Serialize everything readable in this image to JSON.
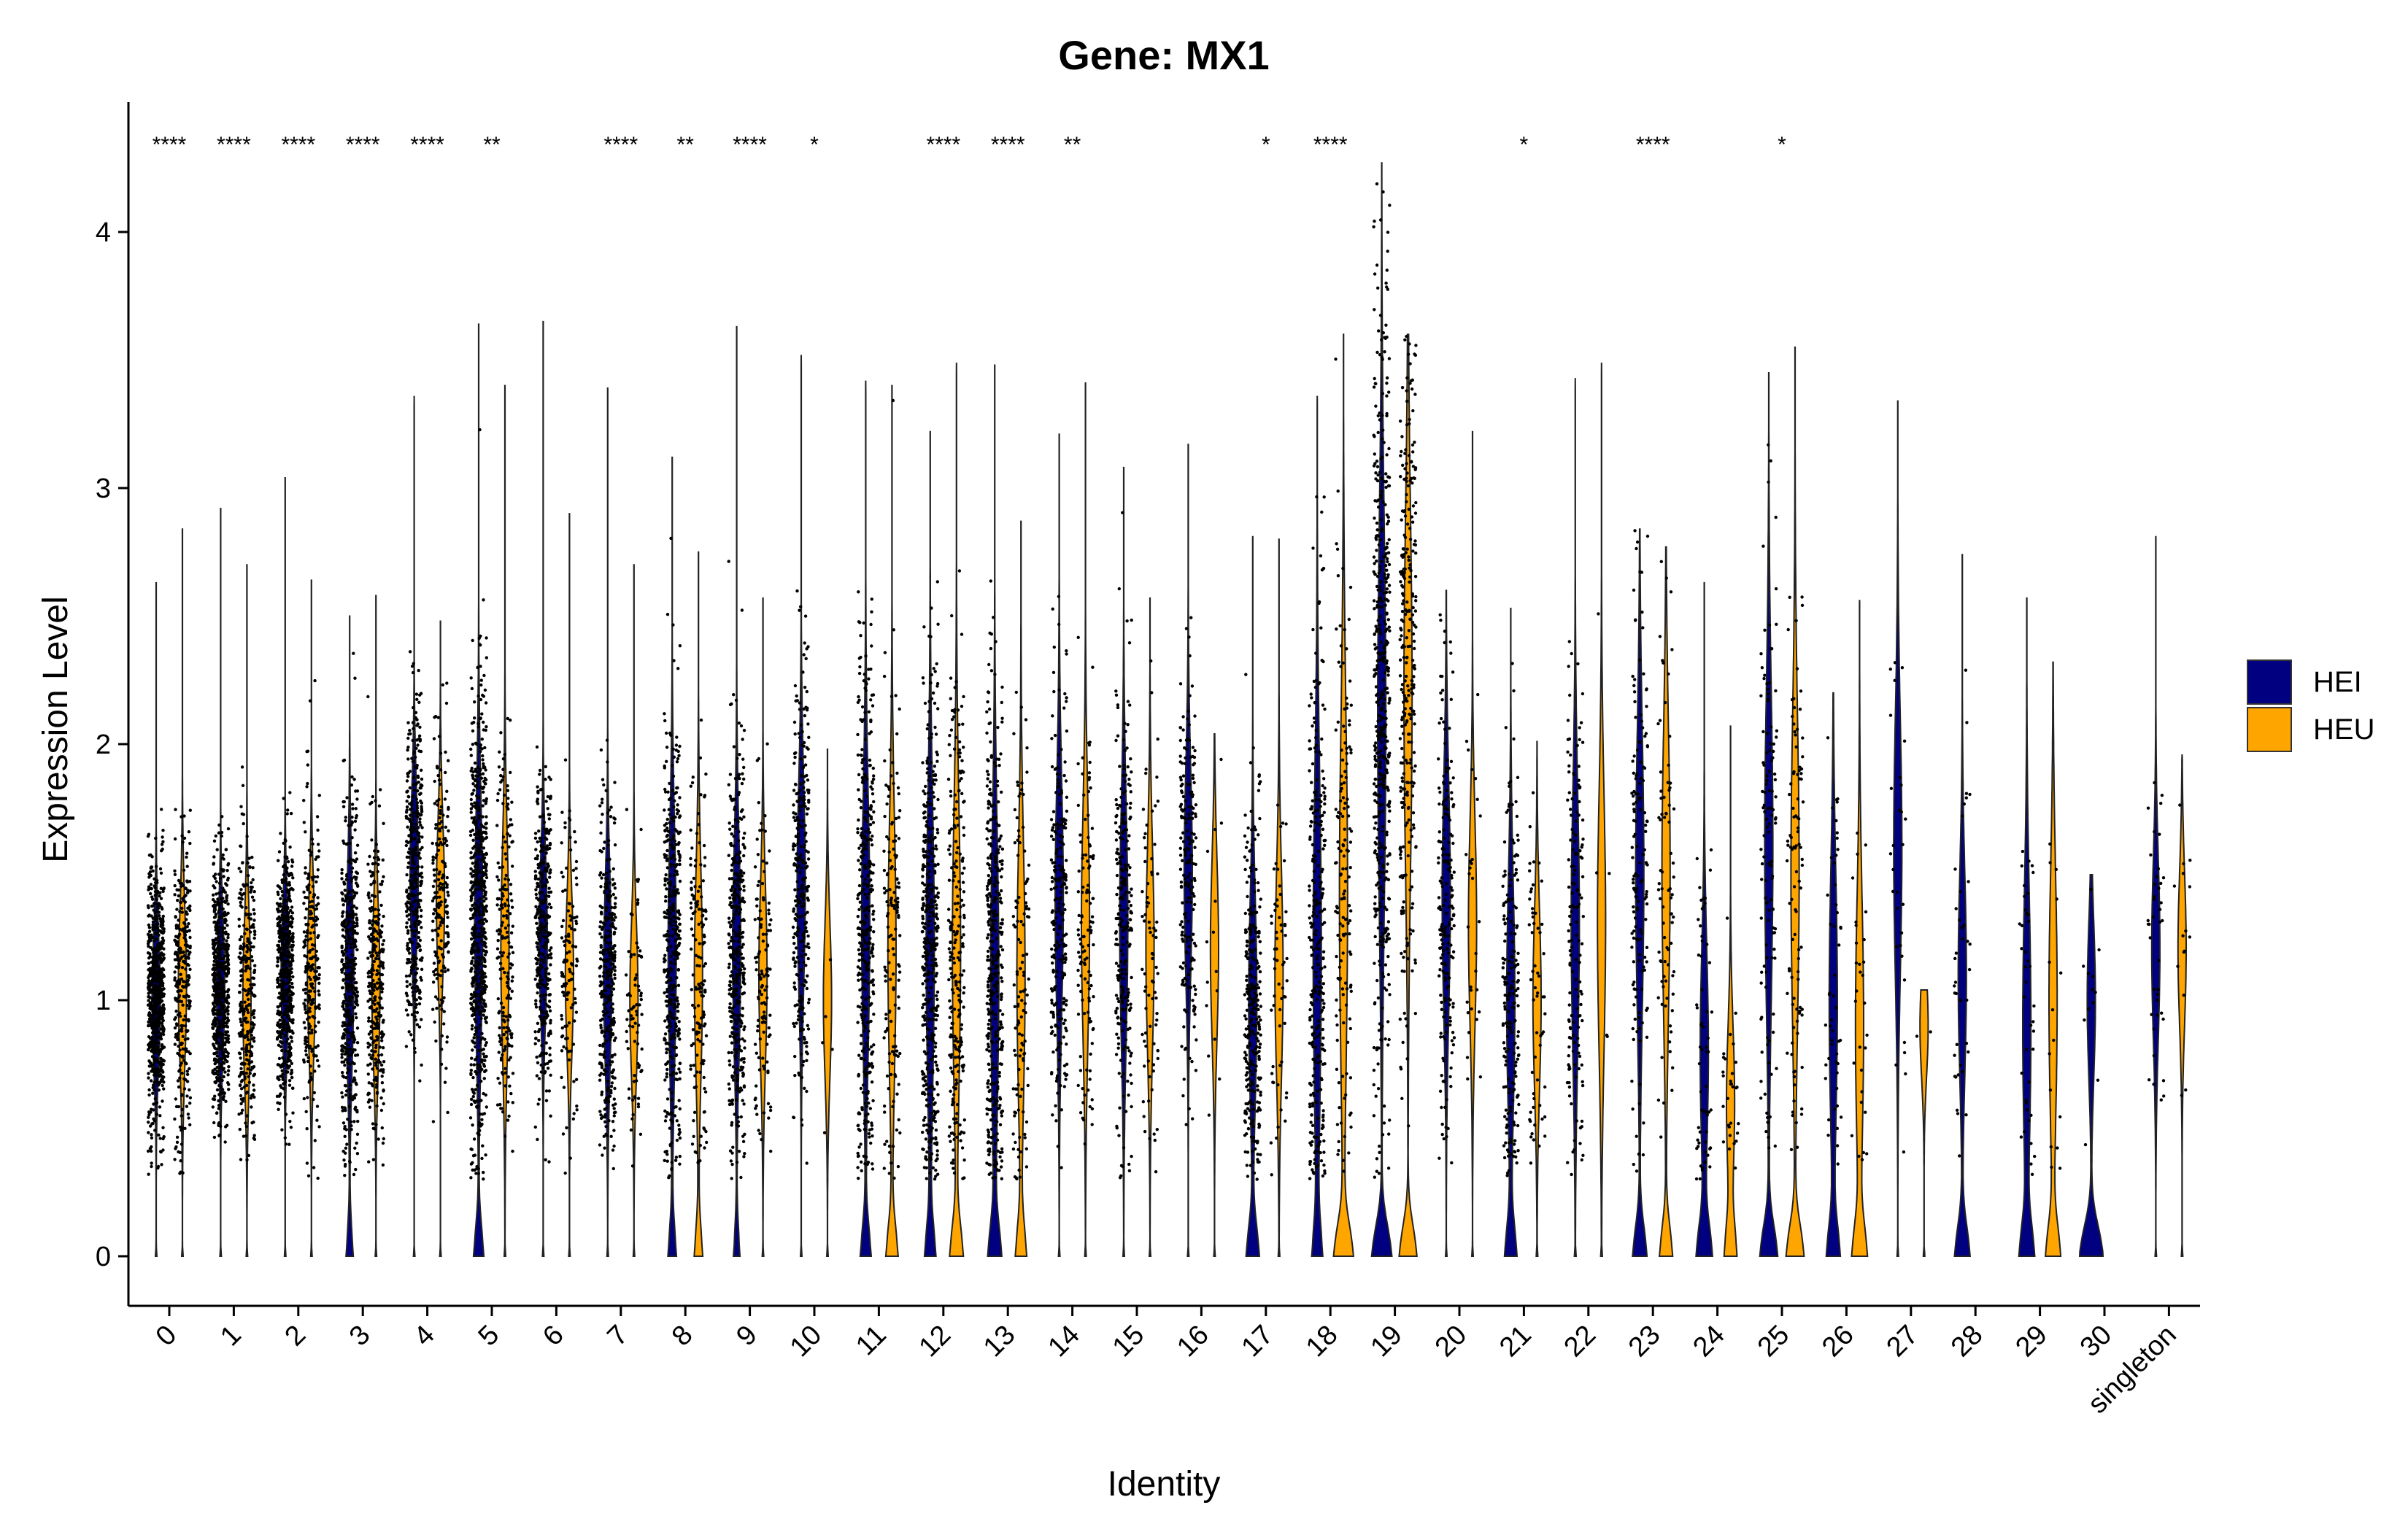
{
  "chart_data": {
    "type": "violin",
    "title": "Gene: MX1",
    "xlabel": "Identity",
    "ylabel": "Expression Level",
    "ylim": [
      -0.22,
      4.5
    ],
    "yticks": [
      0,
      1,
      2,
      3,
      4
    ],
    "grid": false,
    "legend_position": "right",
    "series": [
      {
        "name": "HEI",
        "color": "#000080"
      },
      {
        "name": "HEU",
        "color": "#FFA500"
      }
    ],
    "categories": [
      "0",
      "1",
      "2",
      "3",
      "4",
      "5",
      "6",
      "7",
      "8",
      "9",
      "10",
      "11",
      "12",
      "13",
      "14",
      "15",
      "16",
      "17",
      "18",
      "19",
      "20",
      "21",
      "22",
      "23",
      "24",
      "25",
      "26",
      "27",
      "28",
      "29",
      "30",
      "singleton"
    ],
    "significance": [
      "****",
      "****",
      "****",
      "****",
      "****",
      "**",
      "",
      "****",
      "**",
      "****",
      "*",
      "",
      "****",
      "****",
      "**",
      "",
      "",
      "*",
      "****",
      "",
      "",
      "*",
      "",
      "****",
      "",
      "*",
      "",
      "",
      "",
      "",
      "",
      ""
    ],
    "groups": [
      {
        "cluster": "0",
        "HEI": {
          "max": 2.63,
          "center": 1.0,
          "spread": 0.25,
          "n": 700,
          "zero_bulge": 0
        },
        "HEU": {
          "max": 2.84,
          "center": 1.05,
          "spread": 0.3,
          "n": 300,
          "zero_bulge": 0
        }
      },
      {
        "cluster": "1",
        "HEI": {
          "max": 2.92,
          "center": 1.05,
          "spread": 0.25,
          "n": 600,
          "zero_bulge": 0
        },
        "HEU": {
          "max": 2.7,
          "center": 1.0,
          "spread": 0.3,
          "n": 300,
          "zero_bulge": 0
        }
      },
      {
        "cluster": "2",
        "HEI": {
          "max": 3.04,
          "center": 1.1,
          "spread": 0.25,
          "n": 550,
          "zero_bulge": 0
        },
        "HEU": {
          "max": 2.64,
          "center": 1.1,
          "spread": 0.3,
          "n": 250,
          "zero_bulge": 0
        }
      },
      {
        "cluster": "3",
        "HEI": {
          "max": 2.5,
          "center": 1.1,
          "spread": 0.35,
          "n": 450,
          "zero_bulge": 0.25
        },
        "HEU": {
          "max": 2.58,
          "center": 1.05,
          "spread": 0.3,
          "n": 300,
          "zero_bulge": 0
        }
      },
      {
        "cluster": "4",
        "HEI": {
          "max": 3.36,
          "center": 1.5,
          "spread": 0.3,
          "n": 400,
          "zero_bulge": 0
        },
        "HEU": {
          "max": 2.48,
          "center": 1.4,
          "spread": 0.3,
          "n": 200,
          "zero_bulge": 0
        }
      },
      {
        "cluster": "5",
        "HEI": {
          "max": 3.64,
          "center": 1.3,
          "spread": 0.45,
          "n": 650,
          "zero_bulge": 0.38
        },
        "HEU": {
          "max": 3.4,
          "center": 1.2,
          "spread": 0.4,
          "n": 200,
          "zero_bulge": 0
        }
      },
      {
        "cluster": "6",
        "HEI": {
          "max": 3.65,
          "center": 1.25,
          "spread": 0.3,
          "n": 350,
          "zero_bulge": 0
        },
        "HEU": {
          "max": 2.9,
          "center": 1.1,
          "spread": 0.3,
          "n": 120,
          "zero_bulge": 0
        }
      },
      {
        "cluster": "7",
        "HEI": {
          "max": 3.39,
          "center": 1.1,
          "spread": 0.35,
          "n": 350,
          "zero_bulge": 0
        },
        "HEU": {
          "max": 2.7,
          "center": 1.0,
          "spread": 0.3,
          "n": 80,
          "zero_bulge": 0
        }
      },
      {
        "cluster": "8",
        "HEI": {
          "max": 3.12,
          "center": 1.2,
          "spread": 0.45,
          "n": 400,
          "zero_bulge": 0.3
        },
        "HEU": {
          "max": 2.75,
          "center": 1.1,
          "spread": 0.4,
          "n": 150,
          "zero_bulge": 0.3
        }
      },
      {
        "cluster": "9",
        "HEI": {
          "max": 3.63,
          "center": 1.2,
          "spread": 0.4,
          "n": 400,
          "zero_bulge": 0.22
        },
        "HEU": {
          "max": 2.57,
          "center": 1.1,
          "spread": 0.35,
          "n": 120,
          "zero_bulge": 0
        }
      },
      {
        "cluster": "10",
        "HEI": {
          "max": 3.52,
          "center": 1.45,
          "spread": 0.4,
          "n": 300,
          "zero_bulge": 0
        },
        "HEU": {
          "max": 1.98,
          "center": 1.0,
          "spread": 0.3,
          "n": 5,
          "zero_bulge": 0
        }
      },
      {
        "cluster": "11",
        "HEI": {
          "max": 3.42,
          "center": 1.3,
          "spread": 0.5,
          "n": 400,
          "zero_bulge": 0.4
        },
        "HEU": {
          "max": 3.4,
          "center": 1.2,
          "spread": 0.5,
          "n": 150,
          "zero_bulge": 0.45
        }
      },
      {
        "cluster": "12",
        "HEI": {
          "max": 3.22,
          "center": 1.2,
          "spread": 0.55,
          "n": 450,
          "zero_bulge": 0.4
        },
        "HEU": {
          "max": 3.49,
          "center": 1.2,
          "spread": 0.55,
          "n": 250,
          "zero_bulge": 0.5
        }
      },
      {
        "cluster": "13",
        "HEI": {
          "max": 3.48,
          "center": 1.1,
          "spread": 0.55,
          "n": 400,
          "zero_bulge": 0.5
        },
        "HEU": {
          "max": 2.87,
          "center": 1.1,
          "spread": 0.5,
          "n": 120,
          "zero_bulge": 0.4
        }
      },
      {
        "cluster": "14",
        "HEI": {
          "max": 3.21,
          "center": 1.4,
          "spread": 0.45,
          "n": 250,
          "zero_bulge": 0
        },
        "HEU": {
          "max": 3.41,
          "center": 1.3,
          "spread": 0.45,
          "n": 120,
          "zero_bulge": 0
        }
      },
      {
        "cluster": "15",
        "HEI": {
          "max": 3.08,
          "center": 1.3,
          "spread": 0.45,
          "n": 250,
          "zero_bulge": 0
        },
        "HEU": {
          "max": 2.57,
          "center": 1.2,
          "spread": 0.4,
          "n": 80,
          "zero_bulge": 0
        }
      },
      {
        "cluster": "16",
        "HEI": {
          "max": 3.17,
          "center": 1.5,
          "spread": 0.4,
          "n": 200,
          "zero_bulge": 0
        },
        "HEU": {
          "max": 2.04,
          "center": 1.2,
          "spread": 0.35,
          "n": 15,
          "zero_bulge": 0
        }
      },
      {
        "cluster": "17",
        "HEI": {
          "max": 2.81,
          "center": 1.0,
          "spread": 0.4,
          "n": 300,
          "zero_bulge": 0.5
        },
        "HEU": {
          "max": 2.8,
          "center": 1.1,
          "spread": 0.4,
          "n": 60,
          "zero_bulge": 0
        }
      },
      {
        "cluster": "18",
        "HEI": {
          "max": 3.36,
          "center": 1.2,
          "spread": 0.65,
          "n": 300,
          "zero_bulge": 0.35
        },
        "HEU": {
          "max": 3.6,
          "center": 1.4,
          "spread": 0.7,
          "n": 150,
          "zero_bulge": 0.75
        }
      },
      {
        "cluster": "19",
        "HEI": {
          "max": 4.27,
          "center": 2.1,
          "spread": 0.75,
          "n": 500,
          "zero_bulge": 0.8
        },
        "HEU": {
          "max": 3.6,
          "center": 2.2,
          "spread": 0.7,
          "n": 300,
          "zero_bulge": 0.7
        }
      },
      {
        "cluster": "20",
        "HEI": {
          "max": 2.6,
          "center": 1.4,
          "spread": 0.45,
          "n": 200,
          "zero_bulge": 0
        },
        "HEU": {
          "max": 3.22,
          "center": 1.3,
          "spread": 0.4,
          "n": 30,
          "zero_bulge": 0
        }
      },
      {
        "cluster": "21",
        "HEI": {
          "max": 2.53,
          "center": 1.0,
          "spread": 0.45,
          "n": 200,
          "zero_bulge": 0.45
        },
        "HEU": {
          "max": 2.01,
          "center": 1.0,
          "spread": 0.35,
          "n": 60,
          "zero_bulge": 0
        }
      },
      {
        "cluster": "22",
        "HEI": {
          "max": 3.43,
          "center": 1.3,
          "spread": 0.5,
          "n": 150,
          "zero_bulge": 0
        },
        "HEU": {
          "max": 3.49,
          "center": 1.3,
          "spread": 0.5,
          "n": 5,
          "zero_bulge": 0
        }
      },
      {
        "cluster": "23",
        "HEI": {
          "max": 2.84,
          "center": 1.5,
          "spread": 0.55,
          "n": 150,
          "zero_bulge": 0.55
        },
        "HEU": {
          "max": 2.77,
          "center": 1.5,
          "spread": 0.55,
          "n": 80,
          "zero_bulge": 0.5
        }
      },
      {
        "cluster": "24",
        "HEI": {
          "max": 2.63,
          "center": 0.8,
          "spread": 0.4,
          "n": 60,
          "zero_bulge": 0.6
        },
        "HEU": {
          "max": 2.07,
          "center": 0.6,
          "spread": 0.3,
          "n": 30,
          "zero_bulge": 0.45
        }
      },
      {
        "cluster": "25",
        "HEI": {
          "max": 3.45,
          "center": 1.6,
          "spread": 0.6,
          "n": 120,
          "zero_bulge": 0.7
        },
        "HEU": {
          "max": 3.55,
          "center": 1.5,
          "spread": 0.6,
          "n": 100,
          "zero_bulge": 0.7
        }
      },
      {
        "cluster": "26",
        "HEI": {
          "max": 2.2,
          "center": 1.0,
          "spread": 0.5,
          "n": 50,
          "zero_bulge": 0.5
        },
        "HEU": {
          "max": 2.56,
          "center": 0.9,
          "spread": 0.5,
          "n": 30,
          "zero_bulge": 0.55
        }
      },
      {
        "cluster": "27",
        "HEI": {
          "max": 3.34,
          "center": 1.6,
          "spread": 0.5,
          "n": 30,
          "zero_bulge": 0
        },
        "HEU": {
          "max": 1.04,
          "center": 0.9,
          "spread": 0.2,
          "n": 2,
          "zero_bulge": 0
        }
      },
      {
        "cluster": "28",
        "HEI": {
          "max": 2.74,
          "center": 1.1,
          "spread": 0.4,
          "n": 40,
          "zero_bulge": 0.6
        },
        "HEU": {
          "max": 0,
          "center": 0,
          "spread": 0,
          "n": 0,
          "zero_bulge": 0
        }
      },
      {
        "cluster": "29",
        "HEI": {
          "max": 2.57,
          "center": 0.9,
          "spread": 0.5,
          "n": 40,
          "zero_bulge": 0.55
        },
        "HEU": {
          "max": 2.32,
          "center": 1.0,
          "spread": 0.5,
          "n": 15,
          "zero_bulge": 0.55
        }
      },
      {
        "cluster": "30",
        "HEI": {
          "max": 1.49,
          "center": 1.0,
          "spread": 0.3,
          "n": 12,
          "zero_bulge": 0.95
        },
        "HEU": {
          "max": 0,
          "center": 0,
          "spread": 0,
          "n": 0,
          "zero_bulge": 0
        }
      },
      {
        "cluster": "singleton",
        "HEI": {
          "max": 2.81,
          "center": 1.2,
          "spread": 0.35,
          "n": 40,
          "zero_bulge": 0
        },
        "HEU": {
          "max": 1.96,
          "center": 1.2,
          "spread": 0.3,
          "n": 15,
          "zero_bulge": 0
        }
      }
    ]
  }
}
